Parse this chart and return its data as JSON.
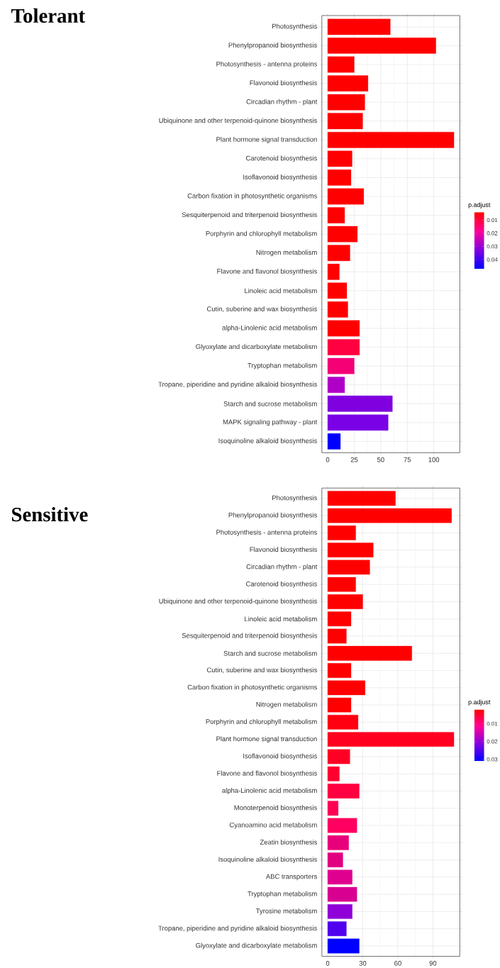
{
  "chart_data": [
    {
      "type": "bar",
      "orientation": "horizontal",
      "title": "Tolerant",
      "categories": [
        "Photosynthesis",
        "Phenylpropanoid biosynthesis",
        "Photosynthesis - antenna proteins",
        "Flavonoid biosynthesis",
        "Circadian rhythm - plant",
        "Ubiquinone and other terpenoid-quinone biosynthesis",
        "Plant hormone signal transduction",
        "Carotenoid biosynthesis",
        "Isoflavonoid biosynthesis",
        "Carbon fixation in photosynthetic organisms",
        "Sesquiterpenoid and triterpenoid biosynthesis",
        "Porphyrin and chlorophyll metabolism",
        "Nitrogen metabolism",
        "Flavone and flavonol biosynthesis",
        "Linoleic acid metabolism",
        "Cutin, suberine and wax biosynthesis",
        "alpha-Linolenic acid metabolism",
        "Glyoxylate and dicarboxylate metabolism",
        "Tryptophan metabolism",
        "Tropane, piperidine and pyridine alkaloid biosynthesis",
        "Starch and sucrose metabolism",
        "MAPK signaling pathway - plant",
        "Isoquinoline alkaloid biosynthesis"
      ],
      "values": [
        59,
        102,
        25,
        38,
        35,
        33,
        119,
        23,
        22,
        34,
        16,
        28,
        21,
        11,
        18,
        19,
        30,
        30,
        25,
        16,
        61,
        57,
        12
      ],
      "colors": [
        "#ff0000",
        "#ff0000",
        "#ff0000",
        "#ff0000",
        "#ff0000",
        "#ff0000",
        "#ff0000",
        "#ff0000",
        "#ff0000",
        "#ff0000",
        "#ff0000",
        "#ff0000",
        "#ff0000",
        "#ff0000",
        "#ff0000",
        "#ff0000",
        "#ff0000",
        "#ff0040",
        "#f50075",
        "#b000c8",
        "#8000e0",
        "#7a00e6",
        "#0000ff"
      ],
      "xlim": [
        -5.5,
        124.5
      ],
      "xticks": [
        0,
        25,
        50,
        75,
        100
      ],
      "grid": true,
      "clabel": "p.adjust",
      "clim": [
        0.004,
        0.047
      ],
      "cticks": [
        0.01,
        0.02,
        0.03,
        0.04
      ]
    },
    {
      "type": "bar",
      "orientation": "horizontal",
      "title": "Sensitive",
      "categories": [
        "Photosynthesis",
        "Phenylpropanoid biosynthesis",
        "Photosynthesis - antenna proteins",
        "Flavonoid biosynthesis",
        "Circadian rhythm - plant",
        "Carotenoid biosynthesis",
        "Ubiquinone and other terpenoid-quinone biosynthesis",
        "Linoleic acid metabolism",
        "Sesquiterpenoid and triterpenoid biosynthesis",
        "Starch and sucrose metabolism",
        "Cutin, suberine and wax biosynthesis",
        "Carbon fixation in photosynthetic organisms",
        "Nitrogen metabolism",
        "Porphyrin and chlorophyll metabolism",
        "Plant hormone signal transduction",
        "Isoflavonoid biosynthesis",
        "Flavone and flavonol biosynthesis",
        "alpha-Linolenic acid metabolism",
        "Monoterpenoid biosynthesis",
        "Cyanoamino acid metabolism",
        "Zeatin biosynthesis",
        "Isoquinoline alkaloid biosynthesis",
        "ABC transporters",
        "Tryptophan metabolism",
        "Tyrosine metabolism",
        "Tropane, piperidine and pyridine alkaloid biosynthesis",
        "Glyoxylate and dicarboxylate metabolism"
      ],
      "values": [
        58,
        106,
        24,
        39,
        36,
        24,
        30,
        20,
        16,
        72,
        20,
        32,
        20,
        26,
        108,
        19,
        10,
        27,
        9,
        25,
        18,
        13,
        21,
        25,
        21,
        16,
        27
      ],
      "colors": [
        "#ff0000",
        "#ff0000",
        "#ff0000",
        "#ff0000",
        "#ff0000",
        "#ff0000",
        "#ff0000",
        "#ff0000",
        "#ff0000",
        "#ff0000",
        "#ff0000",
        "#ff0000",
        "#ff0000",
        "#ff0010",
        "#ff0020",
        "#ff0025",
        "#ff0030",
        "#ff0040",
        "#ff0055",
        "#ff0060",
        "#e8007a",
        "#e00080",
        "#e00090",
        "#d80090",
        "#9000d8",
        "#5000ee",
        "#0000ff"
      ],
      "xlim": [
        -5,
        113
      ],
      "xticks": [
        0,
        30,
        60,
        90
      ],
      "grid": true,
      "clabel": "p.adjust",
      "clim": [
        0.002,
        0.031
      ],
      "cticks": [
        0.01,
        0.02,
        0.03
      ]
    }
  ]
}
